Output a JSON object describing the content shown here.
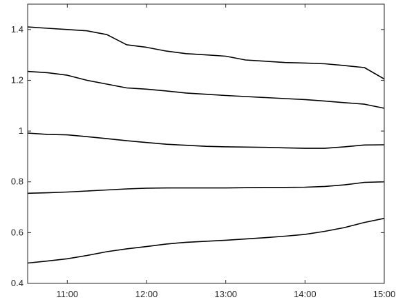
{
  "chart_data": {
    "type": "line",
    "title": "",
    "xlabel": "",
    "ylabel": "",
    "xlim": [
      "10:30",
      "15:00"
    ],
    "ylim": [
      0.4,
      1.5
    ],
    "grid": false,
    "xticks": [
      "11:00",
      "12:00",
      "13:00",
      "14:00",
      "15:00"
    ],
    "yticks": [
      "0.4",
      "0.6",
      "0.8",
      "1",
      "1.2",
      "1.4"
    ],
    "x": [
      "10:30",
      "10:45",
      "11:00",
      "11:15",
      "11:30",
      "11:45",
      "12:00",
      "12:15",
      "12:30",
      "12:45",
      "13:00",
      "13:15",
      "13:30",
      "13:45",
      "14:00",
      "14:15",
      "14:30",
      "14:45",
      "15:00"
    ],
    "series": [
      {
        "color": "#000000",
        "values": [
          1.41,
          1.405,
          1.4,
          1.395,
          1.38,
          1.34,
          1.33,
          1.315,
          1.305,
          1.3,
          1.295,
          1.28,
          1.275,
          1.27,
          1.268,
          1.265,
          1.258,
          1.25,
          1.205
        ]
      },
      {
        "color": "#000000",
        "values": [
          1.235,
          1.23,
          1.22,
          1.2,
          1.185,
          1.17,
          1.165,
          1.158,
          1.15,
          1.145,
          1.14,
          1.136,
          1.132,
          1.128,
          1.124,
          1.118,
          1.112,
          1.106,
          1.09
        ]
      },
      {
        "color": "#000000",
        "values": [
          0.992,
          0.987,
          0.985,
          0.978,
          0.97,
          0.962,
          0.955,
          0.948,
          0.944,
          0.94,
          0.938,
          0.937,
          0.936,
          0.934,
          0.932,
          0.932,
          0.938,
          0.945,
          0.946
        ]
      },
      {
        "color": "#000000",
        "values": [
          0.755,
          0.757,
          0.76,
          0.764,
          0.768,
          0.772,
          0.775,
          0.776,
          0.776,
          0.776,
          0.776,
          0.777,
          0.778,
          0.778,
          0.779,
          0.782,
          0.788,
          0.798,
          0.8
        ]
      },
      {
        "color": "#000000",
        "values": [
          0.48,
          0.488,
          0.497,
          0.51,
          0.525,
          0.536,
          0.545,
          0.555,
          0.562,
          0.566,
          0.57,
          0.575,
          0.58,
          0.586,
          0.593,
          0.605,
          0.62,
          0.64,
          0.656
        ]
      }
    ]
  }
}
